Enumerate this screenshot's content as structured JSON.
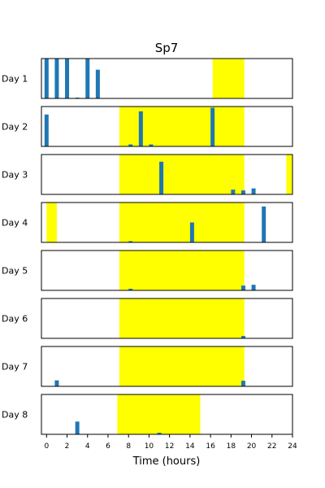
{
  "chart_data": {
    "type": "bar",
    "title": "Sp7",
    "xlabel": "Time (hours)",
    "xlim": [
      -0.5,
      24
    ],
    "xticks": [
      0,
      2,
      4,
      6,
      8,
      10,
      12,
      14,
      16,
      18,
      20,
      22,
      24
    ],
    "bar_color": "#1f77b4",
    "highlight_color": "#ffff00",
    "rows": [
      {
        "label": "Day 1",
        "highlights": [
          [
            16.2,
            19.3
          ]
        ],
        "bars": [
          [
            0,
            1.0
          ],
          [
            1,
            1.0
          ],
          [
            2,
            1.0
          ],
          [
            3,
            0.02
          ],
          [
            4,
            1.0
          ],
          [
            5,
            0.72
          ]
        ]
      },
      {
        "label": "Day 2",
        "highlights": [
          [
            7.1,
            19.3
          ]
        ],
        "bars": [
          [
            0,
            0.8
          ],
          [
            8.2,
            0.05
          ],
          [
            9.2,
            0.88
          ],
          [
            10.2,
            0.05
          ],
          [
            16.2,
            0.97
          ]
        ]
      },
      {
        "label": "Day 3",
        "highlights": [
          [
            7.1,
            19.3
          ],
          [
            23.4,
            24
          ]
        ],
        "bars": [
          [
            11.2,
            0.82
          ],
          [
            18.2,
            0.12
          ],
          [
            19.2,
            0.1
          ],
          [
            20.2,
            0.15
          ]
        ]
      },
      {
        "label": "Day 4",
        "highlights": [
          [
            0.0,
            1.0
          ],
          [
            7.1,
            19.3
          ]
        ],
        "bars": [
          [
            8.2,
            0.03
          ],
          [
            14.2,
            0.5
          ],
          [
            21.2,
            0.9
          ]
        ]
      },
      {
        "label": "Day 5",
        "highlights": [
          [
            7.1,
            19.3
          ]
        ],
        "bars": [
          [
            8.2,
            0.04
          ],
          [
            19.2,
            0.12
          ],
          [
            20.2,
            0.14
          ]
        ]
      },
      {
        "label": "Day 6",
        "highlights": [
          [
            7.1,
            19.3
          ]
        ],
        "bars": [
          [
            19.2,
            0.06
          ]
        ]
      },
      {
        "label": "Day 7",
        "highlights": [
          [
            7.1,
            19.3
          ]
        ],
        "bars": [
          [
            1.0,
            0.15
          ],
          [
            19.2,
            0.14
          ]
        ]
      },
      {
        "label": "Day 8",
        "highlights": [
          [
            6.9,
            15.0
          ]
        ],
        "bars": [
          [
            3.0,
            0.32
          ],
          [
            11.0,
            0.04
          ]
        ]
      }
    ]
  }
}
